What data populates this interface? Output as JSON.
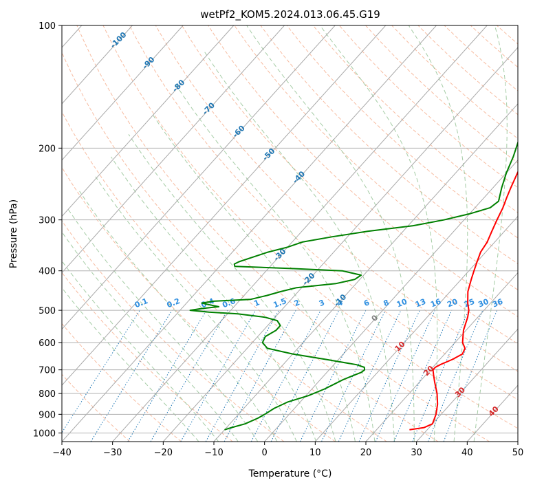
{
  "chart_data": {
    "type": "line",
    "title": "wetPf2_KOM5.2024.013.06.45.G19",
    "xlabel": "Temperature (°C)",
    "ylabel": "Pressure (hPa)",
    "xlim": [
      -40,
      50
    ],
    "ylim": [
      1050,
      100
    ],
    "y_scale": "log",
    "grid": true,
    "x_ticks": [
      -40,
      -30,
      -20,
      -10,
      0,
      10,
      20,
      30,
      40,
      50
    ],
    "y_ticks": [
      1000,
      900,
      800,
      700,
      600,
      500,
      400,
      300,
      200,
      100
    ],
    "colors": {
      "temperature": "#ff0000",
      "dewpoint": "#008000",
      "isotherm": "#a9a9a9",
      "dry_adiabat": "#f4a582",
      "moist_adiabat": "#8fbf8f",
      "mixing_ratio": "#1f77b4",
      "isotherm_label_cold": "#1f77b4",
      "isotherm_label_warm": "#d62728",
      "isotherm_label_zero": "#808080"
    },
    "series": [
      {
        "key": "temperature",
        "p": [
          982,
          970,
          950,
          900,
          850,
          800,
          750,
          720,
          700,
          690,
          680,
          660,
          640,
          620,
          600,
          560,
          520,
          500,
          480,
          450,
          420,
          400,
          380,
          360,
          340,
          320,
          300,
          280,
          265,
          250,
          230,
          210,
          190,
          170,
          150,
          140,
          135,
          130,
          125,
          120,
          115,
          110,
          105,
          100
        ],
        "t": [
          26.5,
          29,
          30,
          29,
          27.5,
          25.5,
          23,
          21.5,
          20.5,
          20.5,
          21,
          22.5,
          23.5,
          23,
          21.5,
          19.5,
          18,
          17,
          15.5,
          13.5,
          12,
          11,
          10,
          9,
          8.5,
          7.5,
          6.5,
          5.5,
          4.5,
          3.5,
          2.2,
          0.8,
          -1.2,
          -3.2,
          -4.6,
          -4.8,
          -4.5,
          -3.8,
          -3,
          -2,
          -0.7,
          0.5,
          1.5,
          3
        ]
      },
      {
        "key": "dewpoint",
        "p": [
          982,
          970,
          950,
          920,
          900,
          870,
          840,
          810,
          780,
          760,
          740,
          720,
          710,
          700,
          690,
          680,
          660,
          640,
          620,
          600,
          580,
          560,
          545,
          530,
          520,
          510,
          505,
          500,
          495,
          490,
          485,
          480,
          475,
          470,
          460,
          450,
          440,
          430,
          420,
          410,
          400,
          395,
          390,
          385,
          380,
          370,
          360,
          350,
          340,
          330,
          320,
          310,
          300,
          290,
          280,
          270,
          250,
          230,
          210,
          190,
          170,
          150,
          140,
          130,
          125,
          120,
          115,
          110,
          105,
          100
        ],
        "t": [
          -10,
          -9,
          -7,
          -5.5,
          -4.8,
          -4,
          -2.5,
          0.5,
          2.5,
          3.5,
          4.5,
          6,
          6.8,
          7,
          6.5,
          4.5,
          -2.5,
          -10,
          -16,
          -18,
          -18.5,
          -17.5,
          -17.5,
          -19,
          -22,
          -28,
          -34,
          -38,
          -36,
          -33,
          -35,
          -37,
          -35,
          -28,
          -25.5,
          -23.5,
          -21,
          -14,
          -11,
          -10.5,
          -15,
          -25,
          -37,
          -37.5,
          -37,
          -35,
          -33,
          -30,
          -28,
          -23,
          -17,
          -9,
          -4,
          0,
          3,
          3.5,
          1.7,
          0,
          -1.5,
          -3.5,
          -5.5,
          -6.5,
          -6.5,
          -6,
          -5.5,
          -5,
          -4.5,
          -4,
          -3.5,
          -3
        ]
      }
    ],
    "isotherm_labels": [
      -100,
      -90,
      -80,
      -70,
      -60,
      -50,
      -40,
      -30,
      -20,
      -10,
      0,
      10,
      20,
      30,
      40
    ],
    "mixing_ratio_labels": [
      "0.1",
      "0.2",
      "0.4",
      "0.6",
      "1",
      "1.5",
      "2",
      "3",
      "4",
      "6",
      "8",
      "10",
      "13",
      "16",
      "20",
      "25",
      "30",
      "36"
    ]
  }
}
